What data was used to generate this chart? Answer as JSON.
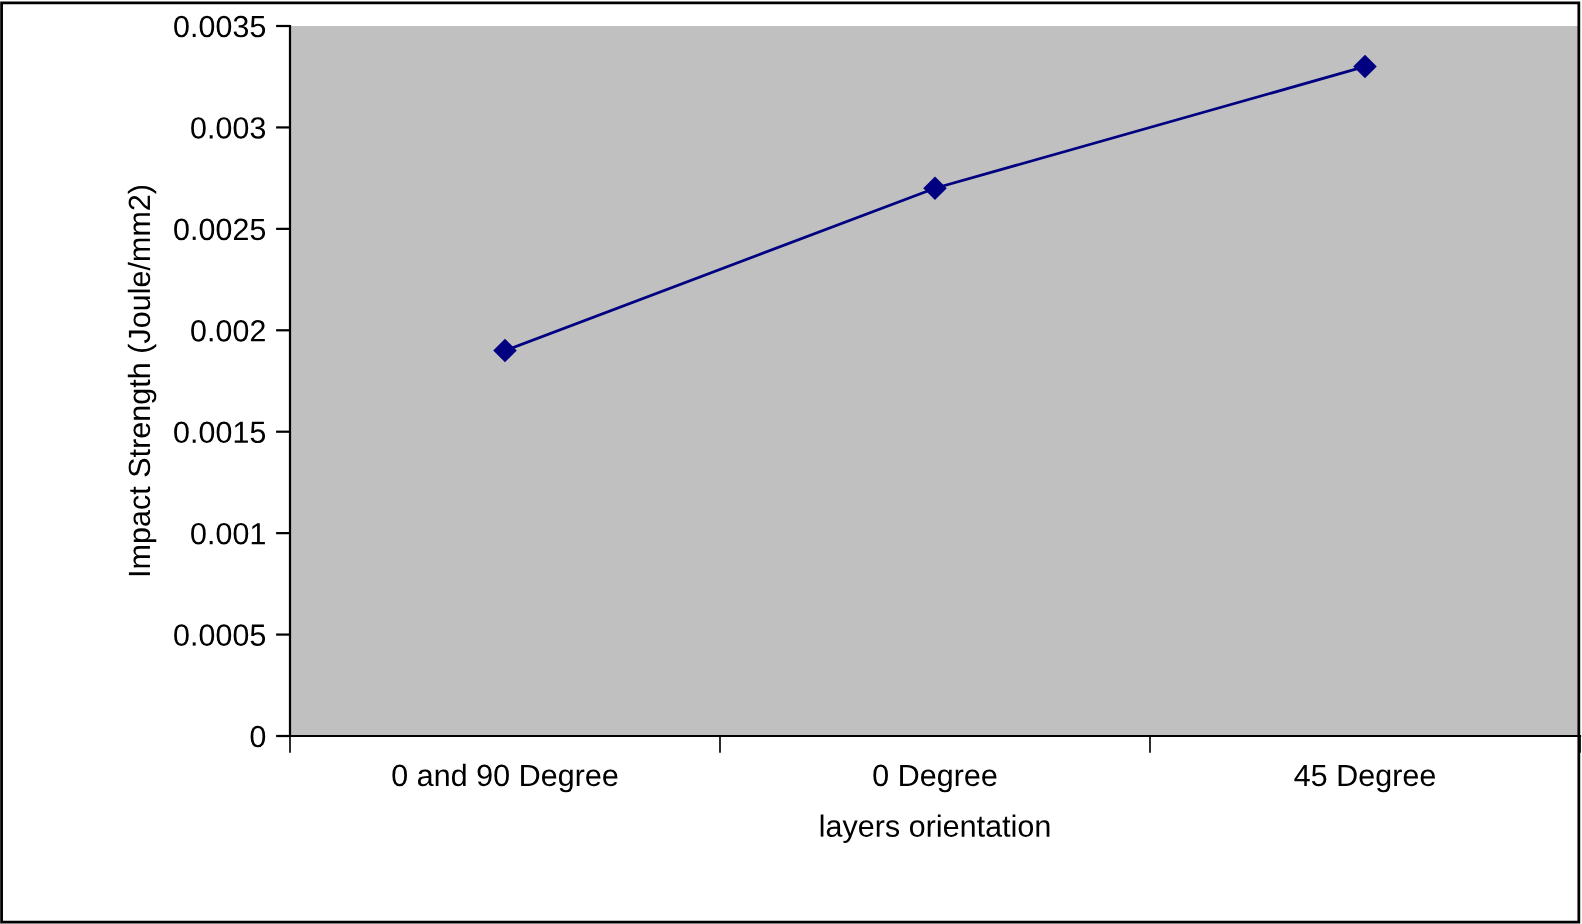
{
  "chart_data": {
    "type": "line",
    "xlabel": "layers orientation",
    "ylabel": "Impact Strength (Joule/mm2)",
    "categories": [
      "0 and 90 Degree",
      "0 Degree",
      "45 Degree"
    ],
    "series": [
      {
        "color": "#000080",
        "values": [
          0.0019,
          0.0027,
          0.0033
        ]
      }
    ],
    "ylim": [
      0,
      0.0035
    ],
    "yticks": [
      0,
      0.0005,
      0.001,
      0.0015,
      0.002,
      0.0025,
      0.003,
      0.0035
    ],
    "marker": "diamond",
    "line_style": "solid",
    "grid": false,
    "legend": false
  }
}
